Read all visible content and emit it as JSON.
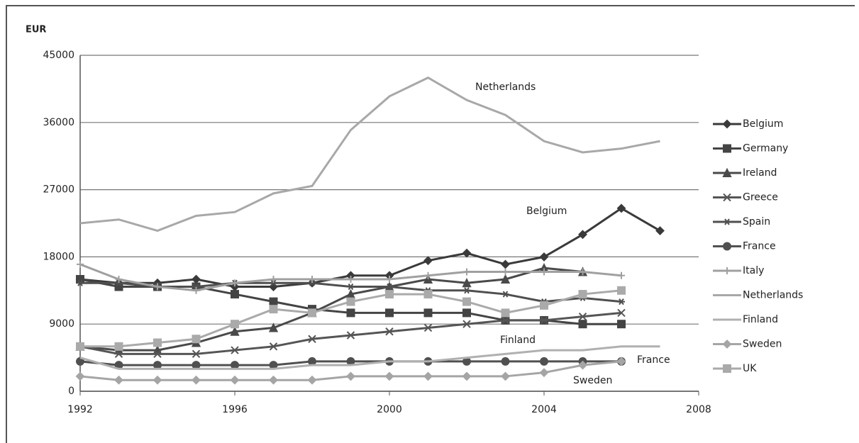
{
  "chart_data": {
    "type": "line",
    "y_label": "EUR",
    "x": [
      1992,
      1993,
      1994,
      1995,
      1996,
      1997,
      1998,
      1999,
      2000,
      2001,
      2002,
      2003,
      2004,
      2005,
      2006,
      2007
    ],
    "xlim": [
      1992,
      2008
    ],
    "xticks": [
      1992,
      1996,
      2000,
      2004,
      2008
    ],
    "ylim": [
      0,
      45000
    ],
    "yticks": [
      0,
      9000,
      18000,
      27000,
      36000,
      45000
    ],
    "grid": true,
    "annotations": [
      "Netherlands",
      "Belgium",
      "Finland",
      "France",
      "Sweden"
    ],
    "series": [
      {
        "name": "Belgium",
        "color": "#3a3a3a",
        "marker": "diamond",
        "values": [
          15000,
          14500,
          14500,
          15000,
          14000,
          14000,
          14500,
          15500,
          15500,
          17500,
          18500,
          17000,
          18000,
          21000,
          24500,
          21500
        ]
      },
      {
        "name": "Germany",
        "color": "#444444",
        "marker": "square",
        "values": [
          15000,
          14000,
          14000,
          14000,
          13000,
          12000,
          11000,
          10500,
          10500,
          10500,
          10500,
          9500,
          9500,
          9000,
          9000,
          null
        ]
      },
      {
        "name": "Ireland",
        "color": "#4a4a4a",
        "marker": "triangle",
        "values": [
          6000,
          5500,
          5500,
          6500,
          8000,
          8500,
          10500,
          13000,
          14000,
          15000,
          14500,
          15000,
          16500,
          16000,
          null,
          null
        ]
      },
      {
        "name": "Greece",
        "color": "#555555",
        "marker": "x",
        "values": [
          6000,
          5000,
          5000,
          5000,
          5500,
          6000,
          7000,
          7500,
          8000,
          8500,
          9000,
          9500,
          9500,
          10000,
          10500,
          null
        ]
      },
      {
        "name": "Spain",
        "color": "#4f4f4f",
        "marker": "star",
        "values": [
          14500,
          14500,
          14000,
          14000,
          14500,
          14500,
          14500,
          14000,
          14000,
          13500,
          13500,
          13000,
          12000,
          12500,
          12000,
          null
        ]
      },
      {
        "name": "France",
        "color": "#505050",
        "marker": "circle",
        "values": [
          4000,
          3500,
          3500,
          3500,
          3500,
          3500,
          4000,
          4000,
          4000,
          4000,
          4000,
          4000,
          4000,
          4000,
          4000,
          null
        ]
      },
      {
        "name": "Italy",
        "color": "#a0a0a0",
        "marker": "plus",
        "values": [
          17000,
          15000,
          14000,
          13500,
          14500,
          15000,
          15000,
          15000,
          15000,
          15500,
          16000,
          16000,
          16000,
          16000,
          15500,
          null
        ]
      },
      {
        "name": "Netherlands",
        "color": "#a8a8a8",
        "marker": "none",
        "values": [
          22500,
          23000,
          21500,
          23500,
          24000,
          26500,
          27500,
          35000,
          39500,
          42000,
          39000,
          37000,
          33500,
          32000,
          32500,
          33500
        ]
      },
      {
        "name": "Finland",
        "color": "#b0b0b0",
        "marker": "none",
        "values": [
          4500,
          3000,
          3000,
          3000,
          3000,
          3000,
          3500,
          3500,
          4000,
          4000,
          4500,
          5000,
          5500,
          5500,
          6000,
          6000
        ]
      },
      {
        "name": "Sweden",
        "color": "#a5a5a5",
        "marker": "diamond",
        "values": [
          2000,
          1500,
          1500,
          1500,
          1500,
          1500,
          1500,
          2000,
          2000,
          2000,
          2000,
          2000,
          2500,
          3500,
          4000,
          null
        ]
      },
      {
        "name": "UK",
        "color": "#aaaaaa",
        "marker": "square",
        "values": [
          6000,
          6000,
          6500,
          7000,
          9000,
          11000,
          10500,
          12000,
          13000,
          13000,
          12000,
          10500,
          11500,
          13000,
          13500,
          null
        ]
      }
    ]
  }
}
